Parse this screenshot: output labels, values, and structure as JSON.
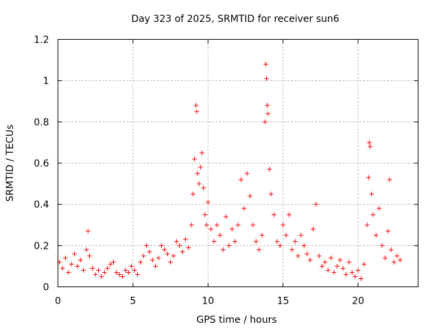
{
  "chart_data": {
    "type": "scatter",
    "title": "Day 323 of 2025, SRMTID for receiver sun6",
    "xlabel": "GPS time / hours",
    "ylabel": "SRMTID / TECUs",
    "xlim": [
      0,
      24
    ],
    "ylim": [
      0,
      1.2
    ],
    "xticks": [
      0,
      5,
      10,
      15,
      20
    ],
    "xtick_labels": [
      "0",
      "5",
      "10",
      "15",
      "20"
    ],
    "yticks": [
      0,
      0.2,
      0.4,
      0.6,
      0.8,
      1.0,
      1.2
    ],
    "ytick_labels": [
      "0",
      "0.2",
      "0.4",
      "0.6",
      "0.8",
      "1",
      "1.2"
    ],
    "grid": true,
    "marker": "plus",
    "series_color": "#ff0000",
    "series": [
      {
        "name": "SRMTID",
        "points": [
          [
            0.1,
            0.12
          ],
          [
            0.3,
            0.09
          ],
          [
            0.5,
            0.14
          ],
          [
            0.7,
            0.07
          ],
          [
            0.9,
            0.11
          ],
          [
            1.1,
            0.16
          ],
          [
            1.3,
            0.1
          ],
          [
            1.5,
            0.13
          ],
          [
            1.7,
            0.08
          ],
          [
            1.9,
            0.18
          ],
          [
            2.0,
            0.27
          ],
          [
            2.1,
            0.15
          ],
          [
            2.3,
            0.09
          ],
          [
            2.5,
            0.06
          ],
          [
            2.7,
            0.08
          ],
          [
            2.9,
            0.05
          ],
          [
            3.1,
            0.07
          ],
          [
            3.3,
            0.09
          ],
          [
            3.5,
            0.11
          ],
          [
            3.7,
            0.12
          ],
          [
            3.9,
            0.07
          ],
          [
            4.1,
            0.06
          ],
          [
            4.3,
            0.05
          ],
          [
            4.5,
            0.08
          ],
          [
            4.7,
            0.07
          ],
          [
            4.9,
            0.1
          ],
          [
            5.1,
            0.08
          ],
          [
            5.3,
            0.06
          ],
          [
            5.5,
            0.12
          ],
          [
            5.7,
            0.15
          ],
          [
            5.9,
            0.2
          ],
          [
            6.1,
            0.17
          ],
          [
            6.3,
            0.13
          ],
          [
            6.5,
            0.1
          ],
          [
            6.7,
            0.14
          ],
          [
            6.9,
            0.2
          ],
          [
            7.1,
            0.18
          ],
          [
            7.3,
            0.16
          ],
          [
            7.5,
            0.12
          ],
          [
            7.7,
            0.15
          ],
          [
            7.9,
            0.22
          ],
          [
            8.1,
            0.2
          ],
          [
            8.3,
            0.17
          ],
          [
            8.5,
            0.23
          ],
          [
            8.7,
            0.19
          ],
          [
            8.9,
            0.3
          ],
          [
            9.0,
            0.45
          ],
          [
            9.1,
            0.62
          ],
          [
            9.2,
            0.88
          ],
          [
            9.25,
            0.85
          ],
          [
            9.3,
            0.55
          ],
          [
            9.4,
            0.5
          ],
          [
            9.5,
            0.58
          ],
          [
            9.6,
            0.65
          ],
          [
            9.7,
            0.48
          ],
          [
            9.8,
            0.35
          ],
          [
            9.9,
            0.3
          ],
          [
            10.0,
            0.41
          ],
          [
            10.2,
            0.28
          ],
          [
            10.4,
            0.22
          ],
          [
            10.6,
            0.3
          ],
          [
            10.8,
            0.25
          ],
          [
            11.0,
            0.18
          ],
          [
            11.2,
            0.34
          ],
          [
            11.4,
            0.2
          ],
          [
            11.6,
            0.28
          ],
          [
            11.8,
            0.22
          ],
          [
            12.0,
            0.3
          ],
          [
            12.2,
            0.52
          ],
          [
            12.4,
            0.38
          ],
          [
            12.6,
            0.55
          ],
          [
            12.8,
            0.44
          ],
          [
            13.0,
            0.3
          ],
          [
            13.2,
            0.22
          ],
          [
            13.4,
            0.18
          ],
          [
            13.6,
            0.25
          ],
          [
            13.8,
            0.8
          ],
          [
            13.85,
            1.08
          ],
          [
            13.9,
            1.01
          ],
          [
            13.95,
            0.88
          ],
          [
            14.0,
            0.84
          ],
          [
            14.1,
            0.57
          ],
          [
            14.2,
            0.45
          ],
          [
            14.4,
            0.35
          ],
          [
            14.6,
            0.22
          ],
          [
            14.8,
            0.2
          ],
          [
            15.0,
            0.3
          ],
          [
            15.2,
            0.25
          ],
          [
            15.4,
            0.35
          ],
          [
            15.6,
            0.18
          ],
          [
            15.8,
            0.22
          ],
          [
            16.0,
            0.15
          ],
          [
            16.2,
            0.25
          ],
          [
            16.4,
            0.2
          ],
          [
            16.6,
            0.16
          ],
          [
            16.8,
            0.13
          ],
          [
            17.0,
            0.28
          ],
          [
            17.2,
            0.4
          ],
          [
            17.4,
            0.15
          ],
          [
            17.6,
            0.1
          ],
          [
            17.8,
            0.12
          ],
          [
            18.0,
            0.08
          ],
          [
            18.2,
            0.14
          ],
          [
            18.4,
            0.07
          ],
          [
            18.6,
            0.1
          ],
          [
            18.8,
            0.13
          ],
          [
            19.0,
            0.09
          ],
          [
            19.2,
            0.06
          ],
          [
            19.4,
            0.12
          ],
          [
            19.6,
            0.07
          ],
          [
            19.8,
            0.05
          ],
          [
            20.0,
            0.08
          ],
          [
            20.2,
            0.04
          ],
          [
            20.4,
            0.11
          ],
          [
            20.6,
            0.3
          ],
          [
            20.7,
            0.53
          ],
          [
            20.75,
            0.7
          ],
          [
            20.8,
            0.68
          ],
          [
            20.9,
            0.45
          ],
          [
            21.0,
            0.35
          ],
          [
            21.2,
            0.25
          ],
          [
            21.4,
            0.38
          ],
          [
            21.6,
            0.2
          ],
          [
            21.8,
            0.14
          ],
          [
            22.0,
            0.27
          ],
          [
            22.1,
            0.52
          ],
          [
            22.2,
            0.18
          ],
          [
            22.4,
            0.12
          ],
          [
            22.6,
            0.15
          ],
          [
            22.8,
            0.13
          ]
        ]
      }
    ]
  }
}
